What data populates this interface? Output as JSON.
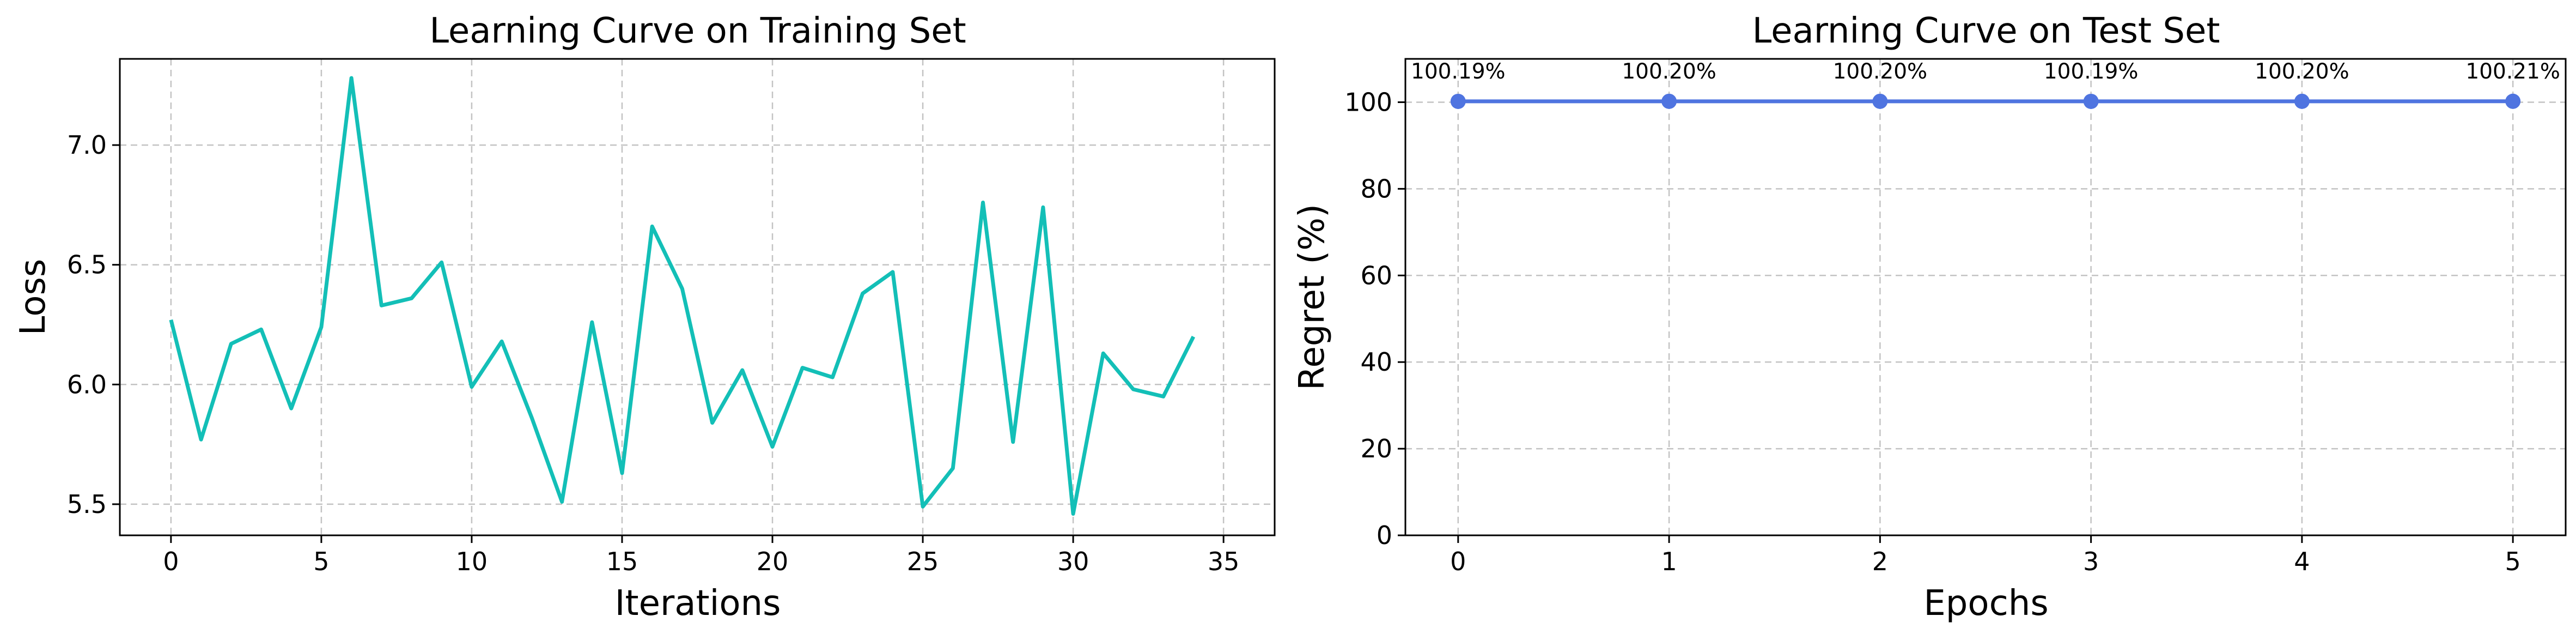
{
  "chart_data": [
    {
      "type": "line",
      "title": "Learning Curve on Training Set",
      "xlabel": "Iterations",
      "ylabel": "Loss",
      "xlim": [
        -1.7,
        36.7
      ],
      "ylim": [
        5.37,
        7.36
      ],
      "xticks": [
        "0",
        "5",
        "10",
        "15",
        "20",
        "25",
        "30",
        "35"
      ],
      "xtick_values": [
        0,
        5,
        10,
        15,
        20,
        25,
        30,
        35
      ],
      "yticks": [
        "5.5",
        "6.0",
        "6.5",
        "7.0"
      ],
      "ytick_values": [
        5.5,
        6.0,
        6.5,
        7.0
      ],
      "grid": true,
      "color": "#13bfb7",
      "x": [
        0,
        1,
        2,
        3,
        4,
        5,
        6,
        7,
        8,
        9,
        10,
        11,
        12,
        13,
        14,
        15,
        16,
        17,
        18,
        19,
        20,
        21,
        22,
        23,
        24,
        25,
        26,
        27,
        28,
        29,
        30,
        31,
        32,
        33,
        34
      ],
      "values": [
        6.27,
        5.77,
        6.17,
        6.23,
        5.9,
        6.24,
        7.28,
        6.33,
        6.36,
        6.51,
        5.99,
        6.18,
        5.86,
        5.51,
        6.26,
        5.63,
        6.66,
        6.4,
        5.84,
        6.06,
        5.74,
        6.07,
        6.03,
        6.38,
        6.47,
        5.49,
        5.65,
        6.76,
        5.76,
        6.74,
        5.46,
        6.13,
        5.98,
        5.95,
        6.2
      ]
    },
    {
      "type": "line",
      "title": "Learning Curve on Test Set",
      "xlabel": "Epochs",
      "ylabel": "Regret (%)",
      "xlim": [
        -0.25,
        5.25
      ],
      "ylim": [
        0,
        110
      ],
      "xticks": [
        "0",
        "1",
        "2",
        "3",
        "4",
        "5"
      ],
      "xtick_values": [
        0,
        1,
        2,
        3,
        4,
        5
      ],
      "yticks": [
        "0",
        "20",
        "40",
        "60",
        "80",
        "100"
      ],
      "ytick_values": [
        0,
        20,
        40,
        60,
        80,
        100
      ],
      "grid": true,
      "color": "#4f74e0",
      "marker": "circle",
      "x": [
        0,
        1,
        2,
        3,
        4,
        5
      ],
      "values": [
        100.19,
        100.2,
        100.2,
        100.19,
        100.2,
        100.21
      ],
      "data_labels": [
        "100.19%",
        "100.20%",
        "100.20%",
        "100.19%",
        "100.20%",
        "100.21%"
      ]
    }
  ]
}
